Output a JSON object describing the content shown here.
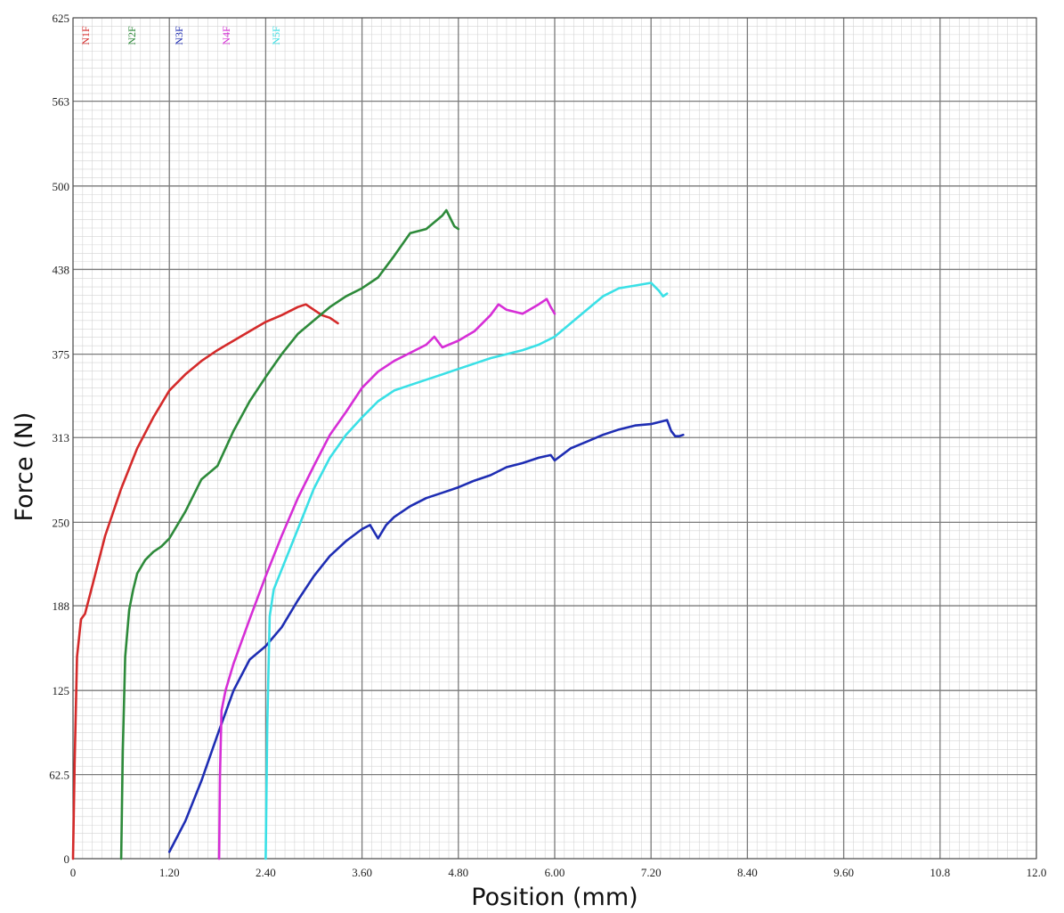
{
  "chart_data": {
    "type": "line",
    "xlabel": "Position (mm)",
    "ylabel": "Force (N)",
    "xlim": [
      0,
      12.0
    ],
    "ylim": [
      0,
      625
    ],
    "x_tick_values": [
      0,
      1.2,
      2.4,
      3.6,
      4.8,
      6.0,
      7.2,
      8.4,
      9.6,
      10.8,
      12.0
    ],
    "x_tick_labels": [
      "0",
      "1.20",
      "2.40",
      "3.60",
      "4.80",
      "6.00",
      "7.20",
      "8.40",
      "9.60",
      "10.8",
      "12.0"
    ],
    "y_tick_values": [
      0,
      62.5,
      125,
      188,
      250,
      313,
      375,
      438,
      500,
      563,
      625
    ],
    "y_tick_labels": [
      "0",
      "62.5",
      "125",
      "188",
      "250",
      "313",
      "375",
      "438",
      "500",
      "563",
      "625"
    ],
    "grid": true,
    "legend": "top-left",
    "series": [
      {
        "name": "N1F",
        "color": "#d42a2a",
        "x": [
          0.0,
          0.02,
          0.05,
          0.1,
          0.15,
          0.25,
          0.4,
          0.6,
          0.8,
          1.0,
          1.2,
          1.4,
          1.6,
          1.8,
          2.0,
          2.2,
          2.4,
          2.6,
          2.8,
          2.9,
          3.0,
          3.1,
          3.2,
          3.3
        ],
        "y": [
          0,
          70,
          150,
          178,
          182,
          205,
          240,
          275,
          305,
          328,
          348,
          360,
          370,
          378,
          385,
          392,
          399,
          404,
          410,
          412,
          408,
          404,
          402,
          398
        ]
      },
      {
        "name": "N2F",
        "color": "#2d8a3a",
        "x": [
          0.6,
          0.62,
          0.65,
          0.7,
          0.75,
          0.8,
          0.9,
          1.0,
          1.1,
          1.2,
          1.4,
          1.6,
          1.8,
          2.0,
          2.2,
          2.4,
          2.6,
          2.8,
          3.0,
          3.2,
          3.4,
          3.6,
          3.8,
          4.0,
          4.2,
          4.4,
          4.6,
          4.65,
          4.7,
          4.75,
          4.8
        ],
        "y": [
          0,
          80,
          150,
          185,
          200,
          212,
          222,
          228,
          232,
          238,
          258,
          282,
          292,
          318,
          340,
          358,
          375,
          390,
          400,
          410,
          418,
          424,
          432,
          448,
          465,
          468,
          478,
          482,
          476,
          470,
          468
        ]
      },
      {
        "name": "N3F",
        "color": "#1e2db3",
        "x": [
          1.2,
          1.4,
          1.6,
          1.8,
          2.0,
          2.2,
          2.4,
          2.6,
          2.8,
          3.0,
          3.2,
          3.4,
          3.6,
          3.7,
          3.8,
          3.9,
          4.0,
          4.2,
          4.4,
          4.6,
          4.8,
          5.0,
          5.2,
          5.4,
          5.6,
          5.8,
          5.95,
          6.0,
          6.2,
          6.4,
          6.6,
          6.8,
          7.0,
          7.2,
          7.4,
          7.45,
          7.5,
          7.55,
          7.6
        ],
        "y": [
          5,
          28,
          58,
          92,
          125,
          148,
          158,
          172,
          192,
          210,
          225,
          236,
          245,
          248,
          238,
          248,
          254,
          262,
          268,
          272,
          276,
          281,
          285,
          291,
          294,
          298,
          300,
          296,
          305,
          310,
          315,
          319,
          322,
          323,
          326,
          318,
          314,
          314,
          315
        ]
      },
      {
        "name": "N4F",
        "color": "#d62ed6",
        "x": [
          1.82,
          1.83,
          1.85,
          1.9,
          2.0,
          2.2,
          2.4,
          2.6,
          2.8,
          3.0,
          3.2,
          3.4,
          3.6,
          3.8,
          4.0,
          4.2,
          4.4,
          4.5,
          4.6,
          4.8,
          5.0,
          5.2,
          5.3,
          5.4,
          5.6,
          5.8,
          5.9,
          5.95,
          6.0
        ],
        "y": [
          0,
          60,
          110,
          125,
          145,
          178,
          210,
          240,
          268,
          292,
          315,
          332,
          350,
          362,
          370,
          376,
          382,
          388,
          380,
          385,
          392,
          404,
          412,
          408,
          405,
          412,
          416,
          410,
          405
        ]
      },
      {
        "name": "N5F",
        "color": "#3ae0e6",
        "x": [
          2.4,
          2.42,
          2.45,
          2.5,
          2.6,
          2.8,
          3.0,
          3.2,
          3.4,
          3.6,
          3.8,
          4.0,
          4.2,
          4.4,
          4.6,
          4.8,
          5.0,
          5.2,
          5.4,
          5.6,
          5.8,
          6.0,
          6.2,
          6.4,
          6.6,
          6.8,
          7.0,
          7.2,
          7.3,
          7.35,
          7.4
        ],
        "y": [
          0,
          100,
          180,
          200,
          215,
          245,
          275,
          298,
          315,
          328,
          340,
          348,
          352,
          356,
          360,
          364,
          368,
          372,
          375,
          378,
          382,
          388,
          398,
          408,
          418,
          424,
          426,
          428,
          422,
          418,
          420
        ]
      }
    ]
  }
}
